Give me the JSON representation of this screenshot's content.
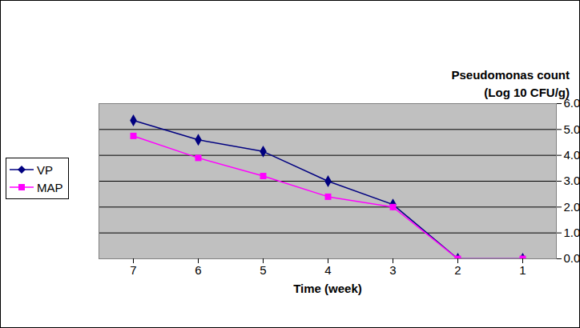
{
  "chart_data": {
    "type": "line",
    "y_label": "Pseudomonas count\n(Log 10 CFU/g)",
    "x_label": "Time (week)",
    "categories": [
      "7",
      "6",
      "5",
      "4",
      "3",
      "2",
      "1"
    ],
    "series": [
      {
        "name": "VP",
        "color": "#000080",
        "marker": "diamond",
        "values": [
          5.35,
          4.6,
          4.15,
          3.0,
          2.1,
          0,
          0
        ]
      },
      {
        "name": "MAP",
        "color": "#ff00ff",
        "marker": "square",
        "values": [
          4.75,
          3.9,
          3.2,
          2.4,
          2.0,
          0,
          0
        ]
      }
    ],
    "ylim": [
      0,
      6
    ],
    "yticks": [
      0,
      1,
      2,
      3,
      4,
      5,
      6
    ],
    "grid": true,
    "legend": "left"
  }
}
